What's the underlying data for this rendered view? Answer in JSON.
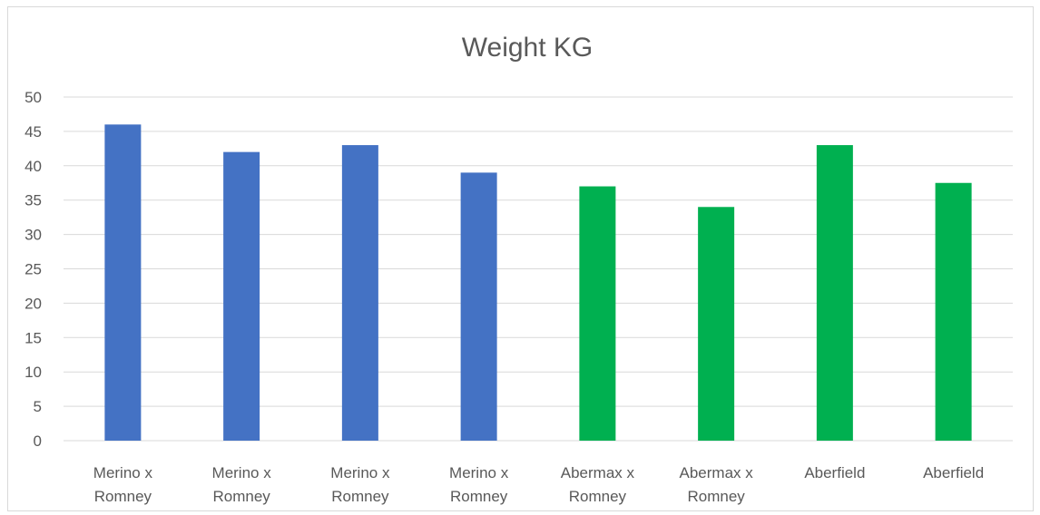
{
  "chart_data": {
    "type": "bar",
    "title": "Weight KG",
    "xlabel": "",
    "ylabel": "",
    "ylim": [
      0,
      50
    ],
    "ytick_step": 5,
    "y_ticks": [
      "0",
      "5",
      "10",
      "15",
      "20",
      "25",
      "30",
      "35",
      "40",
      "45",
      "50"
    ],
    "grid": true,
    "legend": "none",
    "categories": [
      [
        "Merino x",
        "Romney"
      ],
      [
        "Merino x",
        "Romney"
      ],
      [
        "Merino x",
        "Romney"
      ],
      [
        "Merino x",
        "Romney"
      ],
      [
        "Abermax x",
        "Romney"
      ],
      [
        "Abermax x",
        "Romney"
      ],
      [
        "Aberfield"
      ],
      [
        "Aberfield"
      ]
    ],
    "values": [
      46,
      42,
      43,
      39,
      37,
      34,
      43,
      37.5
    ],
    "bar_colors": [
      "#4472c4",
      "#4472c4",
      "#4472c4",
      "#4472c4",
      "#00b050",
      "#00b050",
      "#00b050",
      "#00b050"
    ]
  }
}
